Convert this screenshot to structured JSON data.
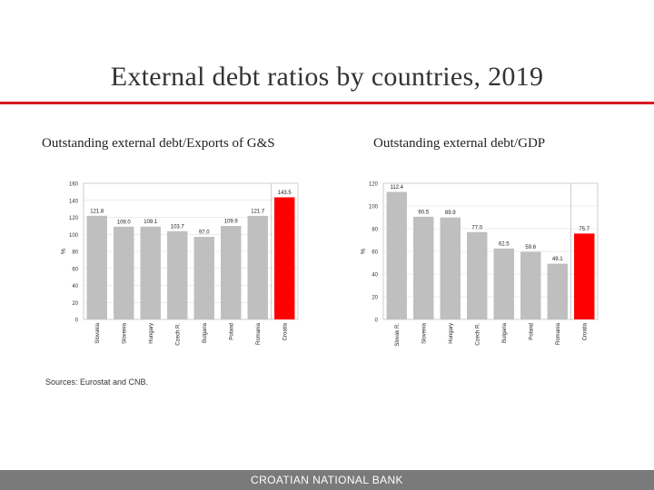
{
  "title": "External debt ratios by countries, 2019",
  "sources": "Sources: Eurostat and CNB.",
  "footer": "CROATIAN NATIONAL BANK",
  "colors": {
    "bar": "#bfbfbf",
    "highlight": "#ff0000",
    "rule": "#d71920",
    "footer": "#7a7a7a"
  },
  "chart_data": [
    {
      "type": "bar",
      "title": "Outstanding external debt/Exports of G&S",
      "ylabel": "%",
      "ylim": [
        0,
        160
      ],
      "yticks": [
        0,
        20,
        40,
        60,
        80,
        100,
        120,
        140,
        160
      ],
      "ytick_labels": [
        "0",
        "20",
        "40",
        "60",
        "80",
        "100",
        "120",
        "140",
        "160"
      ],
      "categories": [
        "Slovakia",
        "Slovenia",
        "Hungary",
        "Czech R.",
        "Bulgaria",
        "Poland",
        "Romania",
        "Croatia"
      ],
      "values": [
        121.8,
        109.0,
        109.1,
        103.7,
        97.0,
        109.9,
        121.7,
        143.5
      ],
      "value_labels": [
        "121.8",
        "109.0",
        "109.1",
        "103.7",
        "97.0",
        "109.9",
        "121.7",
        "143.5"
      ],
      "highlight_index": 7
    },
    {
      "type": "bar",
      "title": "Outstanding external debt/GDP",
      "ylabel": "%",
      "ylim": [
        0,
        120
      ],
      "yticks": [
        0,
        20,
        40,
        60,
        80,
        100,
        120
      ],
      "ytick_labels": [
        "0",
        "20",
        "40",
        "60",
        "80",
        "100",
        "120"
      ],
      "categories": [
        "Slovak R.",
        "Slovenia",
        "Hungary",
        "Czech R.",
        "Bulgaria",
        "Poland",
        "Romania",
        "Croatia"
      ],
      "values": [
        112.4,
        90.5,
        89.9,
        77.0,
        62.5,
        59.6,
        49.1,
        75.7
      ],
      "value_labels": [
        "112.4",
        "90.5",
        "89.9",
        "77.0",
        "62.5",
        "59.6",
        "49.1",
        "75.7"
      ],
      "highlight_index": 7
    }
  ]
}
